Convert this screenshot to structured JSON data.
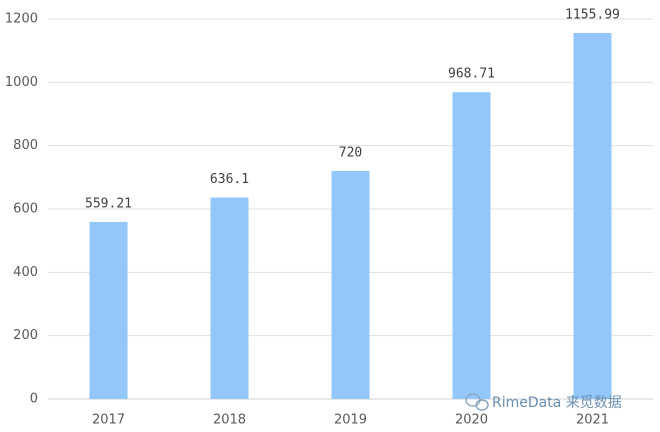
{
  "chart_data": {
    "type": "bar",
    "categories": [
      "2017",
      "2018",
      "2019",
      "2020",
      "2021"
    ],
    "values": [
      559.21,
      636.1,
      720,
      968.71,
      1155.99
    ],
    "color": "#93c6fa",
    "ylim": [
      0,
      1200
    ],
    "yticks": [
      0,
      200,
      400,
      600,
      800,
      1000,
      1200
    ],
    "grid": true,
    "watermark": "RimeData 来觅数据"
  }
}
